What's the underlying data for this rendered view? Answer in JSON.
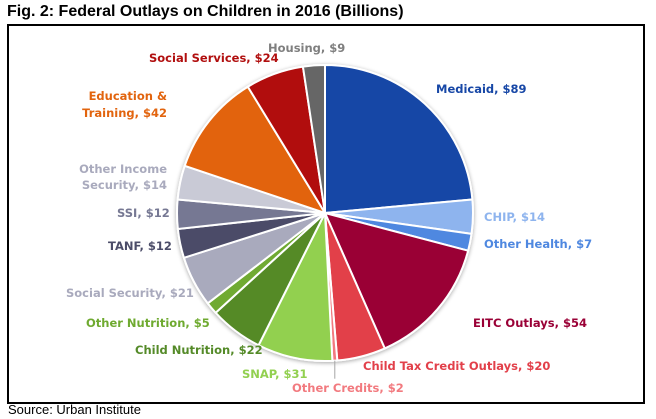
{
  "title": "Fig. 2: Federal Outlays on Children in 2016 (Billions)",
  "source": "Source: Urban Institute",
  "chart_data": {
    "type": "pie",
    "title": "Fig. 2: Federal Outlays on Children in 2016 (Billions)",
    "unit": "Billions",
    "start_angle": "12 o'clock, clockwise",
    "slices": [
      {
        "name": "Medicaid",
        "value": 89,
        "label": "Medicaid, $89",
        "color": "#1747A6",
        "label_color": "#1747A6"
      },
      {
        "name": "CHIP",
        "value": 14,
        "label": "CHIP, $14",
        "color": "#8EB4EE",
        "label_color": "#8EB4EE"
      },
      {
        "name": "Other Health",
        "value": 7,
        "label": "Other Health, $7",
        "color": "#4F88E0",
        "label_color": "#4F88E0"
      },
      {
        "name": "EITC Outlays",
        "value": 54,
        "label": "EITC Outlays, $54",
        "color": "#9A0036",
        "label_color": "#9A0036"
      },
      {
        "name": "Child Tax Credit Outlays",
        "value": 20,
        "label": "Child Tax Credit Outlays, $20",
        "color": "#E2404A",
        "label_color": "#E2404A"
      },
      {
        "name": "Other Credits",
        "value": 2,
        "label": "Other Credits, $2",
        "color": "#F27A7F",
        "label_color": "#F27A7F"
      },
      {
        "name": "SNAP",
        "value": 31,
        "label": "SNAP, $31",
        "color": "#92D050",
        "label_color": "#92D050"
      },
      {
        "name": "Child Nutrition",
        "value": 22,
        "label": "Child Nutrition, $22",
        "color": "#548A28",
        "label_color": "#548A28"
      },
      {
        "name": "Other Nutrition",
        "value": 5,
        "label": "Other Nutrition, $5",
        "color": "#6FAA30",
        "label_color": "#6FAA30"
      },
      {
        "name": "Social Security",
        "value": 21,
        "label": "Social Security, $21",
        "color": "#A9AABD",
        "label_color": "#A9AABD"
      },
      {
        "name": "TANF",
        "value": 12,
        "label": "TANF, $12",
        "color": "#4B4C68",
        "label_color": "#4B4C68"
      },
      {
        "name": "SSI",
        "value": 12,
        "label": "SSI, $12",
        "color": "#767893",
        "label_color": "#767893"
      },
      {
        "name": "Other Income Security",
        "value": 14,
        "label": "Other Income Security, $14",
        "label_lines": [
          "Other Income",
          "Security, $14"
        ],
        "color": "#C9CAD6",
        "label_color": "#A9AABD"
      },
      {
        "name": "Education & Training",
        "value": 42,
        "label": "Education & Training, $42",
        "label_lines": [
          "Education &",
          "Training, $42"
        ],
        "color": "#E2640E",
        "label_color": "#E2640E"
      },
      {
        "name": "Social Services",
        "value": 24,
        "label": "Social Services, $24",
        "color": "#B10F0F",
        "label_color": "#B10F0F"
      },
      {
        "name": "Housing",
        "value": 9,
        "label": "Housing, $9",
        "color": "#666666",
        "label_color": "#7F7F7F"
      }
    ]
  }
}
